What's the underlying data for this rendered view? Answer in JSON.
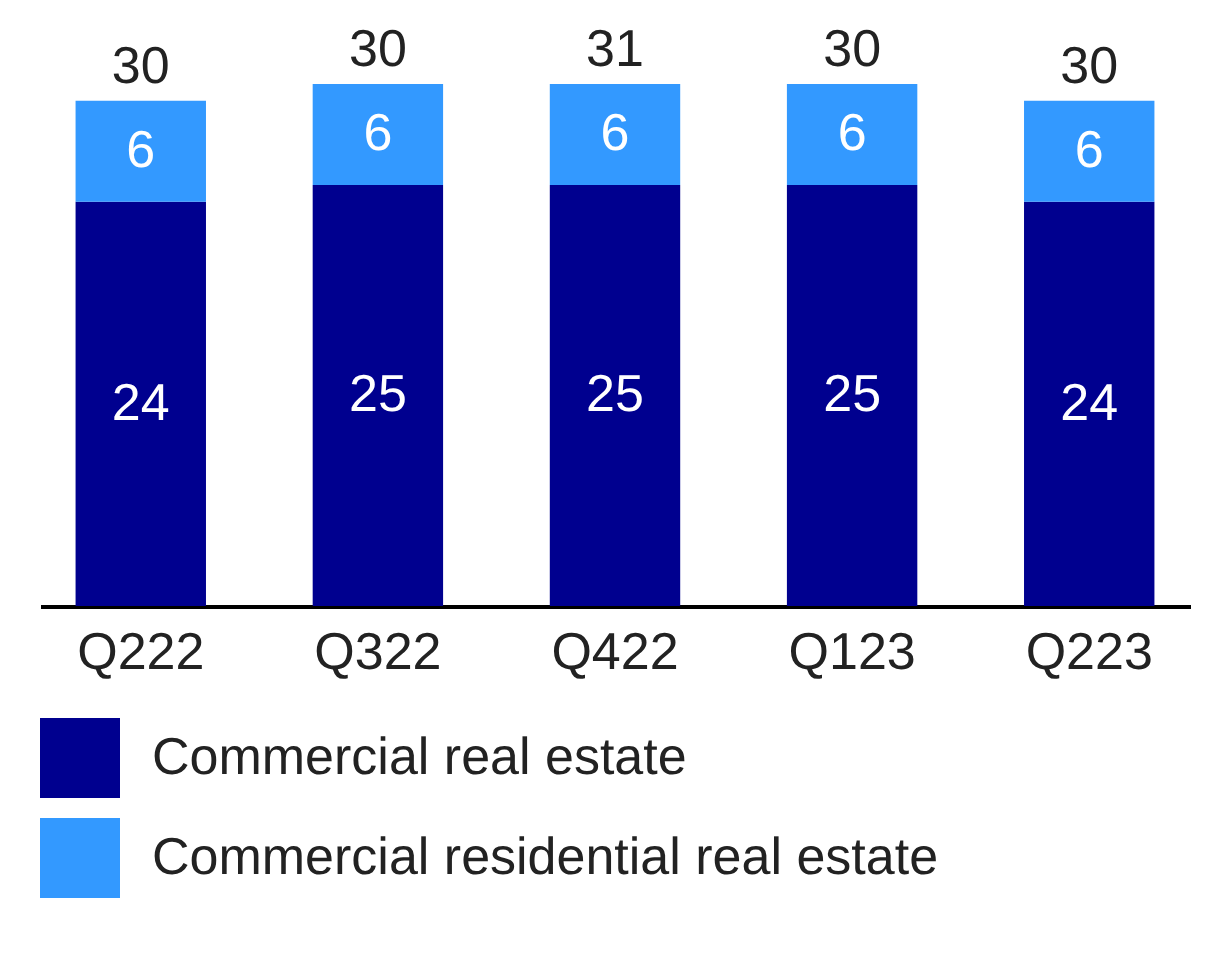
{
  "chart_data": {
    "type": "bar",
    "stacked": true,
    "categories": [
      "Q222",
      "Q322",
      "Q422",
      "Q123",
      "Q223"
    ],
    "series": [
      {
        "name": "Commercial real estate",
        "color": "#00008f",
        "values": [
          24,
          25,
          25,
          25,
          24
        ]
      },
      {
        "name": "Commercial residential real estate",
        "color": "#3399ff",
        "values": [
          6,
          6,
          6,
          6,
          6
        ]
      }
    ],
    "data_labels": true,
    "totals": [
      "30",
      "30",
      "31",
      "30",
      "30"
    ],
    "legend": "bottom left"
  }
}
